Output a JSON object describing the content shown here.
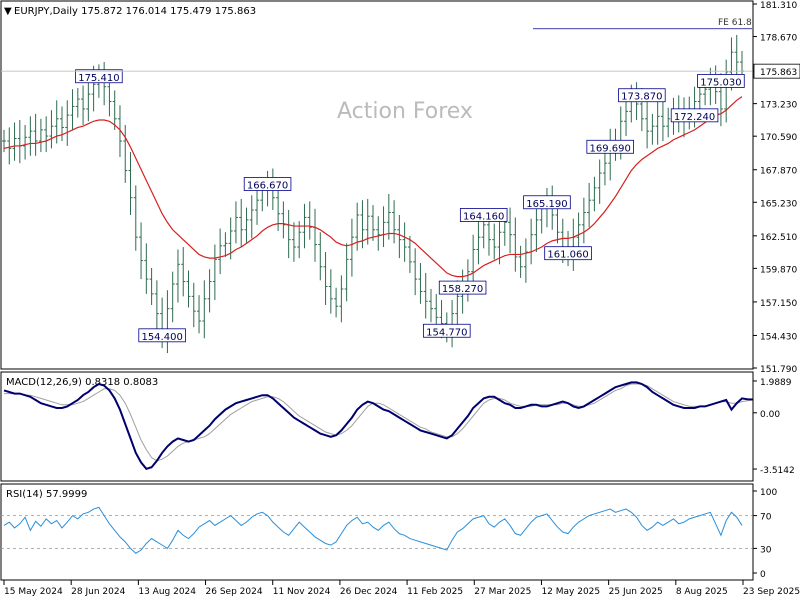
{
  "header": {
    "symbol_line": "EURJPY,Daily  175.872 176.014 175.479 175.863",
    "watermark": "Action Forex"
  },
  "colors": {
    "bars": "#2d6b4f",
    "ma": "#d62020",
    "macd_main": "#00006e",
    "macd_signal": "#a0a0a0",
    "rsi": "#2a8fd9",
    "frame": "#000000",
    "price_tag_bg": "#ffffff",
    "label_border": "#00008b"
  },
  "chart_data": [
    {
      "type": "line",
      "panel": "price",
      "title": "EURJPY,Daily",
      "ohlc_last": {
        "open": 175.872,
        "high": 176.014,
        "low": 175.479,
        "close": 175.863
      },
      "ylim": [
        151.79,
        181.31
      ],
      "yticks": [
        "181.310",
        "178.670",
        "175.863",
        "173.230",
        "170.590",
        "167.870",
        "165.230",
        "162.510",
        "159.870",
        "157.150",
        "154.430",
        "151.790"
      ],
      "current_price": "175.863",
      "xticks": [
        "15 May 2024",
        "28 Jun 2024",
        "13 Aug 2024",
        "26 Sep 2024",
        "11 Nov 2024",
        "26 Dec 2024",
        "11 Feb 2025",
        "27 Mar 2025",
        "12 May 2025",
        "25 Jun 2025",
        "8 Aug 2025",
        "23 Sep 2025"
      ],
      "series": [
        {
          "name": "close",
          "values": [
            170.2,
            169.6,
            170.4,
            169.8,
            170.5,
            171.0,
            170.2,
            171.1,
            170.6,
            171.4,
            172.0,
            171.3,
            172.3,
            173.0,
            173.6,
            172.8,
            174.0,
            174.8,
            175.41,
            174.6,
            173.4,
            172.0,
            170.2,
            167.8,
            165.6,
            162.4,
            160.5,
            159.0,
            157.8,
            156.2,
            154.4,
            156.6,
            158.6,
            160.2,
            158.8,
            157.6,
            156.4,
            155.6,
            157.4,
            158.8,
            160.6,
            161.7,
            161.9,
            162.9,
            164.0,
            163.0,
            163.8,
            164.6,
            165.4,
            166.2,
            166.67,
            165.6,
            164.3,
            163.4,
            162.2,
            161.6,
            162.8,
            164.0,
            163.2,
            161.8,
            160.0,
            158.4,
            157.4,
            156.8,
            158.2,
            160.6,
            162.4,
            164.2,
            163.0,
            164.1,
            163.0,
            162.6,
            163.6,
            164.4,
            163.0,
            162.2,
            161.6,
            160.4,
            159.0,
            158.0,
            157.2,
            156.6,
            155.9,
            155.4,
            154.77,
            156.2,
            157.6,
            158.27,
            159.6,
            161.4,
            162.4,
            163.4,
            162.2,
            161.6,
            162.8,
            163.6,
            162.6,
            160.8,
            160.0,
            161.2,
            162.6,
            163.8,
            164.7,
            165.19,
            164.2,
            162.8,
            161.6,
            161.06,
            162.4,
            163.4,
            164.4,
            165.4,
            166.4,
            167.6,
            168.4,
            169.69,
            170.2,
            171.8,
            172.6,
            173.87,
            173.2,
            172.0,
            171.0,
            171.4,
            172.2,
            171.4,
            172.0,
            172.6,
            171.9,
            172.24,
            172.8,
            173.4,
            174.0,
            174.4,
            175.03,
            174.2,
            172.8,
            175.8,
            177.4,
            176.6,
            175.863
          ]
        },
        {
          "name": "moving_average",
          "values": [
            169.6,
            169.7,
            169.8,
            169.8,
            169.9,
            170.0,
            170.0,
            170.1,
            170.2,
            170.4,
            170.6,
            170.7,
            170.9,
            171.1,
            171.3,
            171.4,
            171.6,
            171.8,
            171.9,
            171.9,
            171.8,
            171.5,
            171.1,
            170.5,
            169.7,
            168.8,
            167.9,
            167.0,
            166.1,
            165.2,
            164.3,
            163.6,
            163.0,
            162.6,
            162.2,
            161.8,
            161.4,
            161.0,
            160.8,
            160.7,
            160.7,
            160.8,
            160.9,
            161.1,
            161.4,
            161.6,
            161.9,
            162.2,
            162.5,
            162.9,
            163.2,
            163.4,
            163.5,
            163.5,
            163.4,
            163.3,
            163.3,
            163.3,
            163.3,
            163.2,
            163.0,
            162.7,
            162.4,
            162.0,
            161.8,
            161.7,
            161.8,
            162.0,
            162.1,
            162.3,
            162.4,
            162.5,
            162.6,
            162.7,
            162.7,
            162.6,
            162.4,
            162.2,
            161.9,
            161.5,
            161.1,
            160.7,
            160.3,
            159.9,
            159.5,
            159.3,
            159.2,
            159.2,
            159.3,
            159.5,
            159.8,
            160.1,
            160.3,
            160.5,
            160.7,
            160.9,
            161.0,
            161.0,
            161.0,
            161.1,
            161.2,
            161.4,
            161.6,
            161.9,
            162.1,
            162.2,
            162.3,
            162.3,
            162.4,
            162.6,
            162.8,
            163.1,
            163.5,
            164.0,
            164.5,
            165.1,
            165.7,
            166.4,
            167.1,
            167.8,
            168.3,
            168.7,
            169.0,
            169.3,
            169.6,
            169.8,
            170.0,
            170.3,
            170.5,
            170.7,
            170.9,
            171.1,
            171.4,
            171.7,
            172.0,
            172.3,
            172.4,
            172.7,
            173.1,
            173.5,
            173.8
          ]
        }
      ],
      "annotations": [
        {
          "label": "175.410",
          "x": 18,
          "y": 175.41
        },
        {
          "label": "154.400",
          "x": 30,
          "y": 154.4
        },
        {
          "label": "166.670",
          "x": 50,
          "y": 166.67
        },
        {
          "label": "164.160",
          "x": 91,
          "y": 164.16
        },
        {
          "label": "165.190",
          "x": 103,
          "y": 165.19
        },
        {
          "label": "161.060",
          "x": 107,
          "y": 161.06
        },
        {
          "label": "158.270",
          "x": 87,
          "y": 158.27
        },
        {
          "label": "154.770",
          "x": 84,
          "y": 154.77
        },
        {
          "label": "173.870",
          "x": 121,
          "y": 173.87
        },
        {
          "label": "169.690",
          "x": 115,
          "y": 169.69
        },
        {
          "label": "175.030",
          "x": 136,
          "y": 175.03
        },
        {
          "label": "172.240",
          "x": 131,
          "y": 172.24
        },
        {
          "label": "FE 61.8",
          "x": 140,
          "y": 179.3
        }
      ]
    },
    {
      "type": "line",
      "panel": "macd",
      "title": "MACD(12,26,9) 0.8318 0.8083",
      "ylim": [
        -4.2,
        2.3
      ],
      "yticks": [
        "1.9889",
        "0.00",
        "-3.5142"
      ],
      "series": [
        {
          "name": "macd",
          "values": [
            1.4,
            1.3,
            1.2,
            1.2,
            1.1,
            1.0,
            0.8,
            0.6,
            0.5,
            0.4,
            0.3,
            0.3,
            0.4,
            0.6,
            0.8,
            1.1,
            1.3,
            1.6,
            1.8,
            1.7,
            1.4,
            0.9,
            0.2,
            -0.7,
            -1.6,
            -2.5,
            -3.1,
            -3.5,
            -3.4,
            -3.0,
            -2.5,
            -2.1,
            -1.8,
            -1.6,
            -1.7,
            -1.8,
            -1.7,
            -1.4,
            -1.1,
            -0.8,
            -0.4,
            -0.1,
            0.2,
            0.4,
            0.6,
            0.7,
            0.8,
            0.9,
            1.0,
            1.1,
            1.1,
            0.9,
            0.6,
            0.3,
            0.0,
            -0.3,
            -0.5,
            -0.7,
            -0.9,
            -1.1,
            -1.3,
            -1.4,
            -1.5,
            -1.4,
            -1.1,
            -0.7,
            -0.3,
            0.2,
            0.5,
            0.7,
            0.6,
            0.4,
            0.2,
            0.1,
            -0.1,
            -0.3,
            -0.5,
            -0.7,
            -0.9,
            -1.1,
            -1.2,
            -1.3,
            -1.4,
            -1.5,
            -1.6,
            -1.4,
            -1.0,
            -0.6,
            -0.2,
            0.3,
            0.6,
            0.9,
            1.0,
            1.0,
            0.8,
            0.6,
            0.5,
            0.3,
            0.3,
            0.4,
            0.5,
            0.5,
            0.4,
            0.4,
            0.5,
            0.6,
            0.7,
            0.6,
            0.4,
            0.3,
            0.4,
            0.6,
            0.8,
            1.0,
            1.2,
            1.4,
            1.6,
            1.7,
            1.8,
            1.9,
            1.9,
            1.8,
            1.6,
            1.3,
            1.1,
            0.9,
            0.7,
            0.5,
            0.4,
            0.3,
            0.3,
            0.3,
            0.4,
            0.4,
            0.5,
            0.6,
            0.7,
            0.8,
            0.2,
            0.6,
            0.9,
            0.85,
            0.8318
          ]
        },
        {
          "name": "signal",
          "values": [
            1.2,
            1.2,
            1.2,
            1.2,
            1.1,
            1.1,
            1.0,
            0.9,
            0.8,
            0.7,
            0.6,
            0.5,
            0.5,
            0.5,
            0.6,
            0.7,
            0.9,
            1.1,
            1.3,
            1.5,
            1.5,
            1.4,
            1.1,
            0.6,
            -0.1,
            -0.9,
            -1.7,
            -2.3,
            -2.8,
            -3.0,
            -2.9,
            -2.7,
            -2.4,
            -2.1,
            -1.9,
            -1.8,
            -1.7,
            -1.6,
            -1.5,
            -1.3,
            -1.0,
            -0.7,
            -0.4,
            -0.1,
            0.1,
            0.3,
            0.5,
            0.7,
            0.8,
            0.9,
            1.0,
            1.0,
            0.9,
            0.7,
            0.4,
            0.1,
            -0.2,
            -0.4,
            -0.6,
            -0.8,
            -1.0,
            -1.2,
            -1.3,
            -1.4,
            -1.3,
            -1.1,
            -0.8,
            -0.4,
            0.0,
            0.4,
            0.6,
            0.6,
            0.5,
            0.3,
            0.1,
            -0.1,
            -0.3,
            -0.5,
            -0.7,
            -0.9,
            -1.0,
            -1.2,
            -1.3,
            -1.4,
            -1.5,
            -1.5,
            -1.3,
            -1.0,
            -0.6,
            -0.2,
            0.2,
            0.6,
            0.8,
            0.9,
            0.9,
            0.8,
            0.6,
            0.5,
            0.4,
            0.4,
            0.4,
            0.5,
            0.5,
            0.5,
            0.5,
            0.5,
            0.6,
            0.6,
            0.5,
            0.4,
            0.4,
            0.5,
            0.6,
            0.8,
            1.0,
            1.2,
            1.4,
            1.5,
            1.7,
            1.8,
            1.8,
            1.8,
            1.7,
            1.5,
            1.3,
            1.1,
            0.9,
            0.7,
            0.6,
            0.5,
            0.4,
            0.4,
            0.4,
            0.4,
            0.5,
            0.6,
            0.7,
            0.7,
            0.6,
            0.6,
            0.7,
            0.75,
            0.8083
          ]
        }
      ]
    },
    {
      "type": "line",
      "panel": "rsi",
      "title": "RSI(14) 57.9999",
      "ylim": [
        0,
        100
      ],
      "yticks": [
        "100",
        "70",
        "30",
        "0"
      ],
      "levels": [
        70,
        30
      ],
      "series": [
        {
          "name": "rsi",
          "values": [
            58,
            62,
            55,
            60,
            68,
            52,
            63,
            57,
            66,
            60,
            64,
            55,
            62,
            70,
            66,
            72,
            74,
            78,
            80,
            70,
            60,
            52,
            44,
            38,
            30,
            24,
            28,
            36,
            42,
            38,
            34,
            30,
            40,
            52,
            46,
            42,
            48,
            56,
            60,
            64,
            58,
            62,
            66,
            70,
            64,
            58,
            62,
            68,
            72,
            74,
            70,
            62,
            56,
            50,
            46,
            54,
            62,
            56,
            50,
            44,
            40,
            36,
            34,
            38,
            48,
            58,
            64,
            68,
            60,
            62,
            56,
            52,
            58,
            62,
            54,
            48,
            46,
            42,
            40,
            38,
            36,
            34,
            32,
            30,
            28,
            40,
            50,
            54,
            60,
            66,
            68,
            70,
            60,
            56,
            62,
            66,
            58,
            48,
            46,
            54,
            62,
            68,
            70,
            72,
            64,
            56,
            50,
            48,
            56,
            62,
            66,
            70,
            72,
            74,
            76,
            78,
            74,
            76,
            78,
            74,
            68,
            58,
            52,
            56,
            62,
            58,
            62,
            66,
            60,
            62,
            66,
            68,
            70,
            72,
            74,
            60,
            46,
            64,
            74,
            68,
            58
          ]
        }
      ]
    }
  ]
}
